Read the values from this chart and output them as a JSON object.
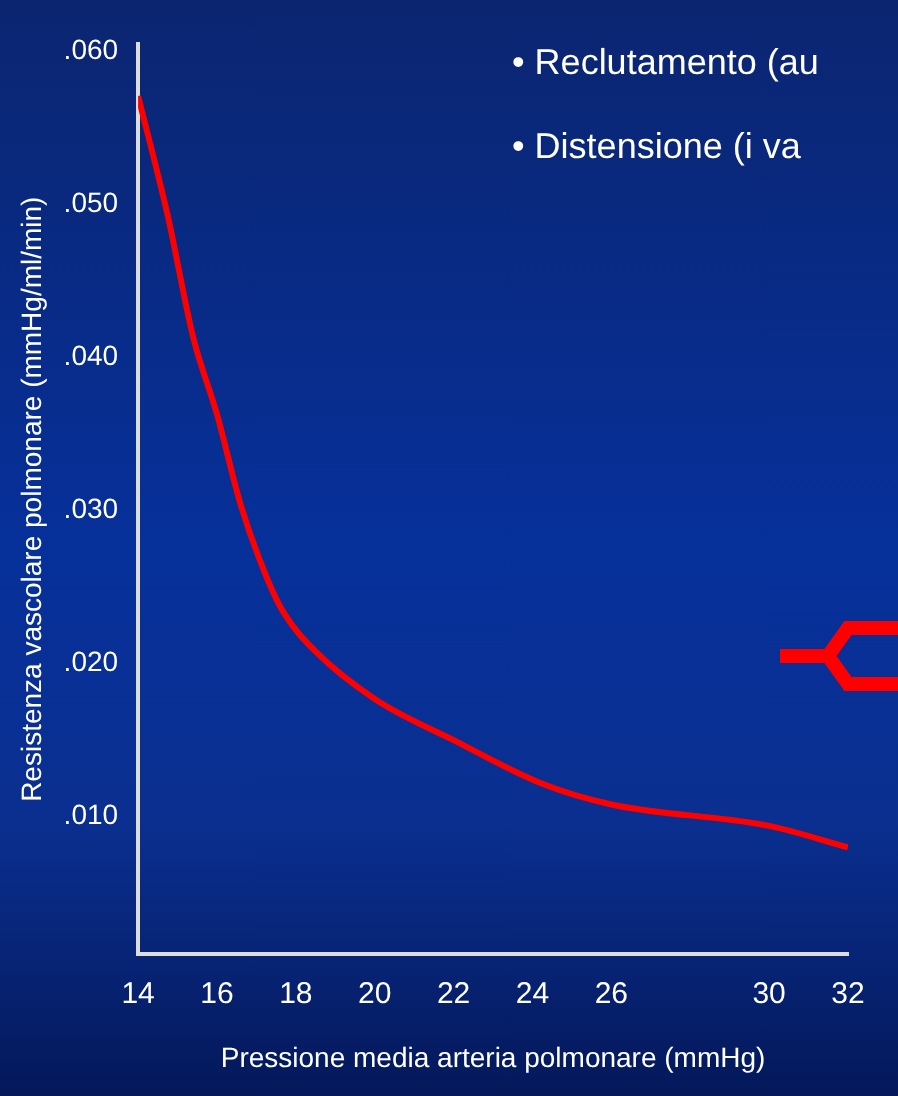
{
  "chart_data": {
    "type": "line",
    "xlabel": "Pressione media arteria polmonare (mmHg)",
    "ylabel": "Resistenza vascolare polmonare (mmHg/ml/min)",
    "annotations": [
      "• Reclutamento (au",
      "• Distensione (i va"
    ],
    "x": [
      14,
      14.75,
      15.4,
      16,
      16.6,
      17.3,
      17.7,
      18.5,
      20,
      22,
      24.3,
      26,
      30,
      32
    ],
    "series": [
      {
        "color": "#ff0000",
        "values": [
          0.0571,
          0.0493,
          0.0413,
          0.0363,
          0.0304,
          0.0254,
          0.0233,
          0.0208,
          0.0177,
          0.015,
          0.0121,
          0.0108,
          0.0094,
          0.008
        ]
      }
    ],
    "xlim": [
      14,
      32
    ],
    "xticks": [
      14,
      16,
      18,
      20,
      22,
      24,
      26,
      30,
      32
    ],
    "ylim": [
      0.001,
      0.0605
    ],
    "yticks": [
      {
        "value": 0.01,
        "label": ".010"
      },
      {
        "value": 0.02,
        "label": ".020"
      },
      {
        "value": 0.03,
        "label": ".030"
      },
      {
        "value": 0.04,
        "label": ".040"
      },
      {
        "value": 0.05,
        "label": ".050"
      },
      {
        "value": 0.06,
        "label": ".060"
      }
    ],
    "grid": false,
    "legend": false,
    "marker": "none",
    "line_style": "solid"
  }
}
